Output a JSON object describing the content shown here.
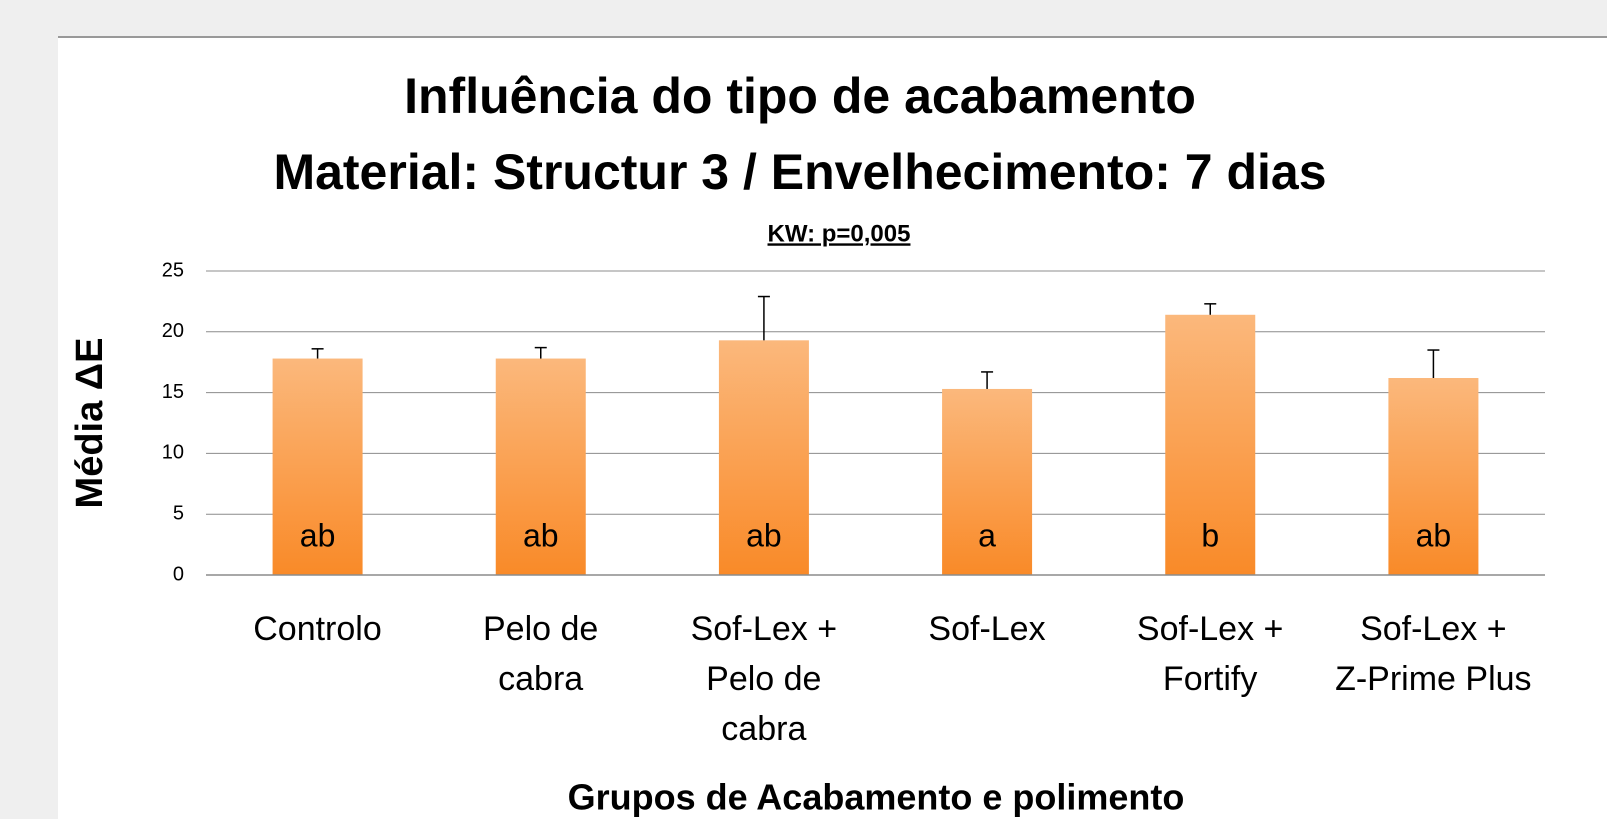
{
  "chart_data": {
    "type": "bar",
    "title": "Influência do tipo de acabamento",
    "subtitle": "Material: Structur 3 / Envelhecimento: 7 dias",
    "annotation": "KW: p=0,005",
    "y_label": "Média ΔE",
    "x_label": "Grupos de Acabamento e polimento",
    "categories": [
      "Controlo",
      "Pelo de\ncabra",
      "Sof-Lex +\nPelo de\ncabra",
      "Sof-Lex",
      "Sof-Lex +\nFortify",
      "Sof-Lex +\nZ-Prime Plus"
    ],
    "values": [
      17.8,
      17.8,
      19.3,
      15.3,
      21.4,
      16.2
    ],
    "errors": [
      0.8,
      0.9,
      3.6,
      1.4,
      0.9,
      2.3
    ],
    "group_letters": [
      "ab",
      "ab",
      "ab",
      "a",
      "b",
      "ab"
    ],
    "color_top": "#fbb87c",
    "color_bottom": "#f98a28",
    "ylim": [
      0,
      25
    ],
    "yticks": [
      0,
      5,
      10,
      15,
      20,
      25
    ],
    "grid": true
  }
}
